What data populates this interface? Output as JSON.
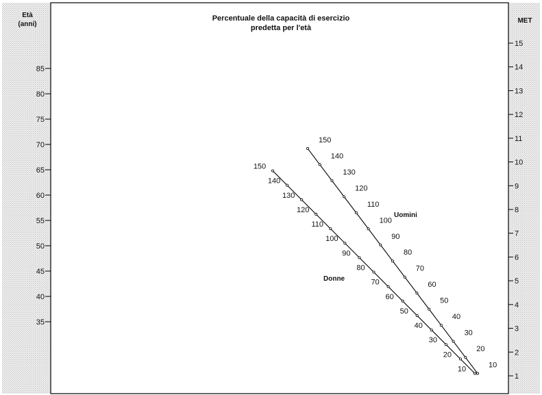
{
  "chart_data": {
    "type": "line",
    "title": [
      "Percentuale della capacità di esercizio",
      "predetta per l'età"
    ],
    "left_axis": {
      "label": [
        "Età",
        "(anni)"
      ],
      "ticks": [
        35,
        40,
        45,
        50,
        55,
        60,
        65,
        70,
        75,
        80,
        85
      ],
      "range": [
        30,
        90
      ]
    },
    "right_axis": {
      "label": "MET",
      "ticks": [
        1,
        2,
        3,
        4,
        5,
        6,
        7,
        8,
        9,
        10,
        11,
        12,
        13,
        14,
        15
      ],
      "range": [
        0.7,
        15.8
      ]
    },
    "series": [
      {
        "name": "Uomini",
        "line_start": {
          "age": 69.2,
          "met": 10.6
        },
        "line_end": {
          "age": 27,
          "met": 1.1
        },
        "percent_labels": [
          150,
          140,
          130,
          120,
          110,
          100,
          90,
          80,
          70,
          60,
          50,
          40,
          30,
          20,
          10
        ]
      },
      {
        "name": "Donne",
        "line_start": {
          "age": 64.8,
          "met": 9.8
        },
        "line_end": {
          "age": 27,
          "met": 1.1
        },
        "percent_labels": [
          150,
          140,
          130,
          120,
          110,
          100,
          90,
          80,
          70,
          60,
          50,
          40,
          30,
          20,
          10
        ]
      }
    ],
    "grid": false
  }
}
